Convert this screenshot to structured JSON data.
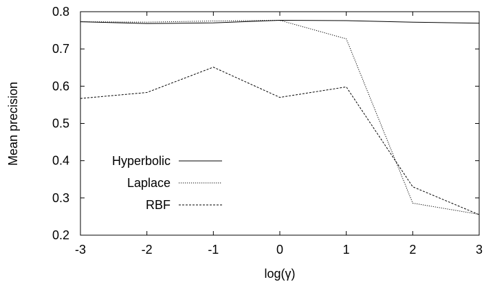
{
  "chart_data": {
    "type": "line",
    "xlabel": "log(γ)",
    "ylabel": "Mean precision",
    "xlim": [
      -3,
      3
    ],
    "ylim": [
      0.2,
      0.8
    ],
    "x_ticks": [
      "-3",
      "-2",
      "-1",
      "0",
      "1",
      "2",
      "3"
    ],
    "y_ticks": [
      "0.2",
      "0.3",
      "0.4",
      "0.5",
      "0.6",
      "0.7",
      "0.8"
    ],
    "legend_position": "left",
    "grid": false,
    "x": [
      -3,
      -2,
      -1,
      0,
      1,
      2,
      3
    ],
    "series": [
      {
        "name": "Hyperbolic",
        "values": [
          0.773,
          0.768,
          0.77,
          0.777,
          0.776,
          0.772,
          0.769
        ],
        "dash": "solid"
      },
      {
        "name": "Laplace",
        "values": [
          0.773,
          0.772,
          0.775,
          0.777,
          0.727,
          0.286,
          0.256
        ],
        "dash": "dotted"
      },
      {
        "name": "RBF",
        "values": [
          0.567,
          0.583,
          0.651,
          0.57,
          0.598,
          0.33,
          0.255
        ],
        "dash": "dashed"
      }
    ]
  }
}
